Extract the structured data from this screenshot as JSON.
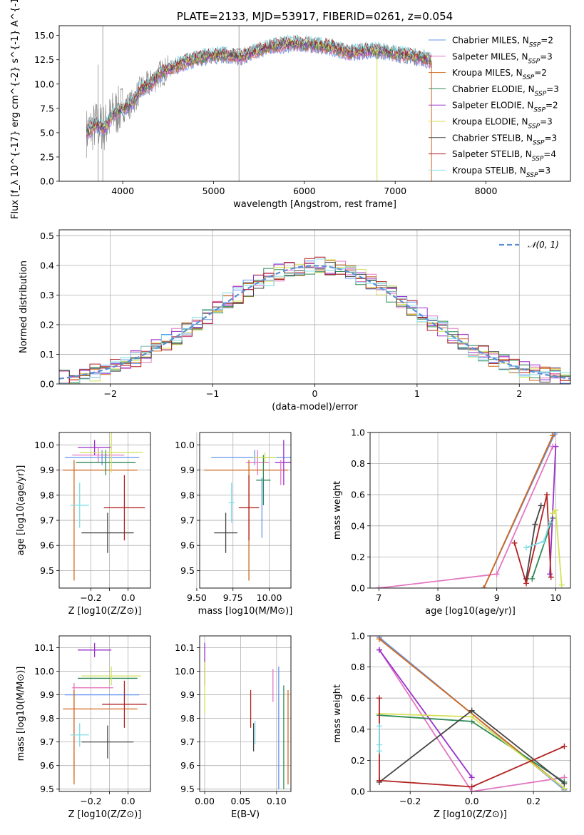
{
  "chart_data": [
    {
      "id": "spectrum",
      "type": "line",
      "title": "PLATE=2133, MJD=53917, FIBERID=0261, z=0.054",
      "xlabel": "wavelength [Angstrom, rest frame]",
      "ylabel": "Flux [f_λ 10^{-17} erg cm^{-2} s^{-1} A^{-1}]",
      "xlim": [
        3300,
        8930
      ],
      "ylim": [
        0,
        16
      ],
      "xticks": [
        4000,
        5000,
        6000,
        7000,
        8000
      ],
      "yticks": [
        0.0,
        2.5,
        5.0,
        7.5,
        10.0,
        12.5,
        15.0
      ],
      "grid": false,
      "legend_position": "right",
      "series": [
        {
          "name": "Chabrier MILES, N_SSP=2",
          "color": "#6495ed"
        },
        {
          "name": "Salpeter MILES, N_SSP=3",
          "color": "#e377c2"
        },
        {
          "name": "Kroupa MILES, N_SSP=2",
          "color": "#d2691e"
        },
        {
          "name": "Chabrier ELODIE, N_SSP=3",
          "color": "#2e8b57"
        },
        {
          "name": "Salpeter ELODIE, N_SSP=2",
          "color": "#9932cc"
        },
        {
          "name": "Kroupa ELODIE, N_SSP=3",
          "color": "#d4e157"
        },
        {
          "name": "Chabrier STELIB, N_SSP=3",
          "color": "#444444"
        },
        {
          "name": "Salpeter STELIB, N_SSP=4",
          "color": "#b22222"
        },
        {
          "name": "Kroupa STELIB, N_SSP=3",
          "color": "#80deea"
        }
      ],
      "data_color": "#808080",
      "continuum": {
        "x": [
          3600,
          3700,
          3800,
          3900,
          4000,
          4100,
          4200,
          4300,
          4400,
          4500,
          4700,
          4900,
          5100,
          5300,
          5500,
          5700,
          5900,
          6100,
          6300,
          6500,
          6700,
          6900,
          7100,
          7300,
          7400
        ],
        "y": [
          5.0,
          5.8,
          5.5,
          7.0,
          7.5,
          8.0,
          9.5,
          10.0,
          11.0,
          11.5,
          12.3,
          12.8,
          13.0,
          12.8,
          13.5,
          14.0,
          14.2,
          14.0,
          13.8,
          13.2,
          13.5,
          13.3,
          13.0,
          12.7,
          12.3
        ]
      }
    },
    {
      "id": "residuals",
      "type": "line",
      "xlabel": "(data-model)/error",
      "ylabel": "Normed distribution",
      "xlim": [
        -2.5,
        2.5
      ],
      "ylim": [
        0,
        0.52
      ],
      "xticks": [
        -2,
        -1,
        0,
        1,
        2
      ],
      "yticks": [
        0.0,
        0.1,
        0.2,
        0.3,
        0.4,
        0.5
      ],
      "grid": true,
      "legend_position": "top-right",
      "reference_curve": {
        "name": "𝒩(0, 1)",
        "color": "#5b8fd6"
      },
      "bin_width": 0.1
    },
    {
      "id": "age-vs-Z",
      "type": "scatter",
      "xlabel": "Z [log10(Z/Z⊙)]",
      "ylabel": "age  [log10(age/yr)]",
      "xlim": [
        -0.37,
        0.12
      ],
      "ylim": [
        9.43,
        10.05
      ],
      "xticks": [
        -0.2,
        -0.1,
        0.0
      ],
      "xticklabels": [
        "−0.2",
        "",
        "0.0"
      ],
      "yticks": [
        9.5,
        9.6,
        9.7,
        9.8,
        9.9,
        10.0
      ],
      "grid": true,
      "points": [
        {
          "model": "Chabrier MILES",
          "color": "#6495ed",
          "x": -0.14,
          "xerr": 0.2,
          "y": 9.95,
          "yerr": 0.03
        },
        {
          "model": "Salpeter MILES",
          "color": "#e377c2",
          "x": -0.16,
          "xerr": 0.14,
          "y": 9.96,
          "yerr": 0.03
        },
        {
          "model": "Kroupa MILES",
          "color": "#d2691e",
          "x": -0.15,
          "xerr": 0.2,
          "y": 9.9,
          "yerr": 0.0
        },
        {
          "model": "Kroupa MILES",
          "color": "#d2691e",
          "x": -0.29,
          "xerr": 0.0,
          "y": 9.7,
          "yerr": 0.24
        },
        {
          "model": "Chabrier ELODIE",
          "color": "#2e8b57",
          "x": -0.12,
          "xerr": 0.16,
          "y": 9.93,
          "yerr": 0.05
        },
        {
          "model": "Salpeter ELODIE",
          "color": "#9932cc",
          "x": -0.18,
          "xerr": 0.09,
          "y": 9.99,
          "yerr": 0.03
        },
        {
          "model": "Kroupa ELODIE",
          "color": "#d4e157",
          "x": -0.09,
          "xerr": 0.17,
          "y": 9.97,
          "yerr": 0.08
        },
        {
          "model": "Chabrier STELIB",
          "color": "#444444",
          "x": -0.11,
          "xerr": 0.14,
          "y": 9.65,
          "yerr": 0.08
        },
        {
          "model": "Salpeter STELIB",
          "color": "#b22222",
          "x": -0.02,
          "xerr": 0.11,
          "y": 9.75,
          "yerr": 0.13
        },
        {
          "model": "Kroupa STELIB",
          "color": "#80deea",
          "x": -0.26,
          "xerr": 0.05,
          "y": 9.76,
          "yerr": 0.09
        }
      ]
    },
    {
      "id": "age-vs-mass",
      "type": "scatter",
      "xlabel": "mass [log10(M/M⊙)]",
      "xlim": [
        9.52,
        10.15
      ],
      "ylim": [
        9.43,
        10.05
      ],
      "xticks": [
        9.5,
        9.75,
        10.0
      ],
      "xticklabels": [
        "9.50",
        "9.75",
        "10.00"
      ],
      "yticks": [
        9.5,
        9.6,
        9.7,
        9.8,
        9.9,
        10.0
      ],
      "grid": true,
      "points": [
        {
          "model": "Chabrier MILES",
          "color": "#6495ed",
          "x": 9.9,
          "xerr": 0.3,
          "y": 9.95,
          "yerr": 0.03
        },
        {
          "model": "Salpeter MILES",
          "color": "#e377c2",
          "x": 9.92,
          "xerr": 0.08,
          "y": 9.93,
          "yerr": 0.05
        },
        {
          "model": "Kroupa MILES",
          "color": "#d2691e",
          "x": 9.84,
          "xerr": 0.29,
          "y": 9.9,
          "yerr": 0.0
        },
        {
          "model": "Kroupa MILES",
          "color": "#d2691e",
          "x": 9.86,
          "xerr": 0.0,
          "y": 9.7,
          "yerr": 0.24
        },
        {
          "model": "Chabrier ELODIE",
          "color": "#2e8b57",
          "x": 9.96,
          "xerr": 0.05,
          "y": 9.86,
          "yerr": 0.1
        },
        {
          "model": "Salpeter ELODIE",
          "color": "#9932cc",
          "x": 10.1,
          "xerr": 0.06,
          "y": 9.93,
          "yerr": 0.09
        },
        {
          "model": "Kroupa ELODIE",
          "color": "#d4e157",
          "x": 9.97,
          "xerr": 0.08,
          "y": 9.95,
          "yerr": 0.02
        },
        {
          "model": "Chabrier STELIB",
          "color": "#444444",
          "x": 9.7,
          "xerr": 0.08,
          "y": 9.65,
          "yerr": 0.08
        },
        {
          "model": "Salpeter STELIB",
          "color": "#b22222",
          "x": 9.86,
          "xerr": 0.07,
          "y": 9.75,
          "yerr": 0.13
        },
        {
          "model": "Kroupa STELIB",
          "color": "#80deea",
          "x": 9.74,
          "xerr": 0.02,
          "y": 9.77,
          "yerr": 0.08
        },
        {
          "model": "Chabrier MILES",
          "color": "#6495ed",
          "x": 9.95,
          "xerr": 0.0,
          "y": 9.75,
          "yerr": 0.12
        },
        {
          "model": "Salpeter MILES",
          "color": "#e377c2",
          "x": 10.08,
          "xerr": 0.0,
          "y": 9.89,
          "yerr": 0.05
        }
      ]
    },
    {
      "id": "massweight-vs-age",
      "type": "line",
      "xlabel": "age  [log10(age/yr)]",
      "ylabel": "mass weight",
      "xlim": [
        6.85,
        10.25
      ],
      "ylim": [
        0,
        1
      ],
      "xticks": [
        7,
        8,
        9,
        10
      ],
      "yticks": [
        0.0,
        0.2,
        0.4,
        0.6,
        0.8,
        1.0
      ],
      "grid": true,
      "series": [
        {
          "name": "Chabrier MILES",
          "color": "#6495ed",
          "x": [
            8.78,
            9.98
          ],
          "y": [
            0.0,
            0.99
          ]
        },
        {
          "name": "Salpeter MILES",
          "color": "#e377c2",
          "x": [
            7.0,
            9.0,
            9.95
          ],
          "y": [
            0.0,
            0.09,
            0.91
          ]
        },
        {
          "name": "Kroupa MILES",
          "color": "#d2691e",
          "x": [
            8.78,
            9.95
          ],
          "y": [
            0.0,
            0.98
          ]
        },
        {
          "name": "Chabrier ELODIE",
          "color": "#2e8b57",
          "x": [
            9.6,
            9.95
          ],
          "y": [
            0.06,
            0.45
          ]
        },
        {
          "name": "Salpeter ELODIE",
          "color": "#9932cc",
          "x": [
            9.9,
            10.0
          ],
          "y": [
            0.09,
            0.91
          ]
        },
        {
          "name": "Kroupa ELODIE",
          "color": "#d4e157",
          "x": [
            9.95,
            10.0,
            10.1
          ],
          "y": [
            0.48,
            0.5,
            0.02
          ]
        },
        {
          "name": "Chabrier STELIB",
          "color": "#444444",
          "x": [
            9.5,
            9.65,
            9.75
          ],
          "y": [
            0.06,
            0.41,
            0.53
          ]
        },
        {
          "name": "Salpeter STELIB",
          "color": "#b22222",
          "x": [
            9.3,
            9.5,
            9.85,
            9.92
          ],
          "y": [
            0.29,
            0.03,
            0.6,
            0.07
          ]
        },
        {
          "name": "Kroupa STELIB",
          "color": "#80deea",
          "x": [
            9.5,
            9.8,
            9.9
          ],
          "y": [
            0.26,
            0.3,
            0.42
          ]
        }
      ]
    },
    {
      "id": "mass-vs-Z",
      "type": "scatter",
      "xlabel": "Z [log10(Z/Z⊙)]",
      "ylabel": "mass [log10(M/M⊙)]",
      "xlim": [
        -0.37,
        0.12
      ],
      "ylim": [
        9.49,
        10.15
      ],
      "xticks": [
        -0.2,
        -0.1,
        0.0
      ],
      "xticklabels": [
        "−0.2",
        "",
        "0.0"
      ],
      "yticks": [
        9.5,
        9.6,
        9.7,
        9.8,
        9.9,
        10.0,
        10.1
      ],
      "grid": true,
      "points": [
        {
          "model": "Chabrier MILES",
          "color": "#6495ed",
          "x": -0.14,
          "xerr": 0.2,
          "y": 9.9,
          "yerr": 0.0
        },
        {
          "model": "Salpeter MILES",
          "color": "#e377c2",
          "x": -0.19,
          "xerr": 0.11,
          "y": 9.93,
          "yerr": 0.0
        },
        {
          "model": "Salpeter MILES",
          "color": "#e377c2",
          "x": -0.29,
          "xerr": 0.0,
          "y": 9.75,
          "yerr": 0.2
        },
        {
          "model": "Kroupa MILES",
          "color": "#d2691e",
          "x": -0.15,
          "xerr": 0.2,
          "y": 9.84,
          "yerr": 0.0
        },
        {
          "model": "Kroupa MILES",
          "color": "#d2691e",
          "x": -0.29,
          "xerr": 0.0,
          "y": 9.72,
          "yerr": 0.2
        },
        {
          "model": "Chabrier ELODIE",
          "color": "#2e8b57",
          "x": -0.11,
          "xerr": 0.16,
          "y": 9.97,
          "yerr": 0.0
        },
        {
          "model": "Salpeter ELODIE",
          "color": "#9932cc",
          "x": -0.18,
          "xerr": 0.09,
          "y": 10.09,
          "yerr": 0.03
        },
        {
          "model": "Kroupa ELODIE",
          "color": "#d4e157",
          "x": -0.09,
          "xerr": 0.16,
          "y": 9.98,
          "yerr": 0.04
        },
        {
          "model": "Chabrier STELIB",
          "color": "#444444",
          "x": -0.11,
          "xerr": 0.14,
          "y": 9.7,
          "yerr": 0.07
        },
        {
          "model": "Salpeter STELIB",
          "color": "#b22222",
          "x": -0.02,
          "xerr": 0.12,
          "y": 9.86,
          "yerr": 0.1
        },
        {
          "model": "Kroupa STELIB",
          "color": "#80deea",
          "x": -0.26,
          "xerr": 0.05,
          "y": 9.73,
          "yerr": 0.05
        }
      ]
    },
    {
      "id": "mass-vs-ebv",
      "type": "scatter",
      "xlabel": "E(B-V)",
      "xlim": [
        -0.007,
        0.12
      ],
      "ylim": [
        9.49,
        10.15
      ],
      "xticks": [
        0.0,
        0.05,
        0.1
      ],
      "xticklabels": [
        "0.00",
        "0.05",
        "0.10"
      ],
      "yticks": [
        9.5,
        9.6,
        9.7,
        9.8,
        9.9,
        10.0,
        10.1
      ],
      "grid": true,
      "points": [
        {
          "model": "Salpeter ELODIE",
          "color": "#9932cc",
          "x": 0.0,
          "xerr": 0.0,
          "y": 10.03,
          "yerr": 0.09
        },
        {
          "model": "Kroupa ELODIE",
          "color": "#d4e157",
          "x": 0.0,
          "xerr": 0.0,
          "y": 9.93,
          "yerr": 0.11
        },
        {
          "model": "Salpeter STELIB",
          "color": "#b22222",
          "x": 0.064,
          "xerr": 0.0,
          "y": 9.84,
          "yerr": 0.08
        },
        {
          "model": "Chabrier STELIB",
          "color": "#444444",
          "x": 0.068,
          "xerr": 0.0,
          "y": 9.72,
          "yerr": 0.06
        },
        {
          "model": "Kroupa STELIB",
          "color": "#80deea",
          "x": 0.07,
          "xerr": 0.0,
          "y": 9.74,
          "yerr": 0.05
        },
        {
          "model": "Salpeter MILES",
          "color": "#e377c2",
          "x": 0.095,
          "xerr": 0.0,
          "y": 9.94,
          "yerr": 0.07
        },
        {
          "model": "Chabrier MILES",
          "color": "#6495ed",
          "x": 0.103,
          "xerr": 0.0,
          "y": 9.76,
          "yerr": 0.26
        },
        {
          "model": "Chabrier ELODIE",
          "color": "#2e8b57",
          "x": 0.11,
          "xerr": 0.0,
          "y": 9.72,
          "yerr": 0.22
        },
        {
          "model": "Kroupa MILES",
          "color": "#d2691e",
          "x": 0.116,
          "xerr": 0.0,
          "y": 9.72,
          "yerr": 0.2
        }
      ]
    },
    {
      "id": "massweight-vs-Z",
      "type": "line",
      "xlabel": "Z [log10(Z/Z⊙)]",
      "ylabel": "mass weight",
      "xlim": [
        -0.33,
        0.32
      ],
      "ylim": [
        0,
        1
      ],
      "xticks": [
        -0.2,
        0.0,
        0.2
      ],
      "xticklabels": [
        "−0.2",
        "0.0",
        "0.2"
      ],
      "yticks": [
        0.0,
        0.2,
        0.4,
        0.6,
        0.8,
        1.0
      ],
      "grid": true,
      "series": [
        {
          "name": "Chabrier MILES",
          "color": "#6495ed",
          "x": [
            -0.3,
            0.3
          ],
          "y": [
            0.99,
            0.01
          ]
        },
        {
          "name": "Salpeter MILES",
          "color": "#e377c2",
          "x": [
            -0.3,
            0.0,
            0.3
          ],
          "y": [
            0.91,
            0.0,
            0.09
          ]
        },
        {
          "name": "Kroupa MILES",
          "color": "#d2691e",
          "x": [
            -0.3,
            0.3
          ],
          "y": [
            0.98,
            0.02
          ]
        },
        {
          "name": "Chabrier ELODIE",
          "color": "#2e8b57",
          "x": [
            -0.3,
            0.0,
            0.3
          ],
          "y": [
            0.49,
            0.45,
            0.06
          ]
        },
        {
          "name": "Salpeter ELODIE",
          "color": "#9932cc",
          "x": [
            -0.3,
            0.0
          ],
          "y": [
            0.91,
            0.09
          ]
        },
        {
          "name": "Kroupa ELODIE",
          "color": "#d4e157",
          "x": [
            -0.3,
            0.0,
            0.3
          ],
          "y": [
            0.5,
            0.48,
            0.02
          ]
        },
        {
          "name": "Chabrier STELIB",
          "color": "#444444",
          "x": [
            -0.3,
            0.0,
            0.3
          ],
          "y": [
            0.06,
            0.52,
            0.05
          ]
        },
        {
          "name": "Salpeter STELIB",
          "color": "#b22222",
          "x": [
            -0.3,
            -0.3,
            0.0,
            0.3
          ],
          "y": [
            0.6,
            0.07,
            0.03,
            0.29
          ]
        },
        {
          "name": "Kroupa STELIB",
          "color": "#80deea",
          "x": [
            -0.3,
            -0.3,
            -0.3
          ],
          "y": [
            0.26,
            0.3,
            0.42
          ]
        }
      ]
    }
  ]
}
